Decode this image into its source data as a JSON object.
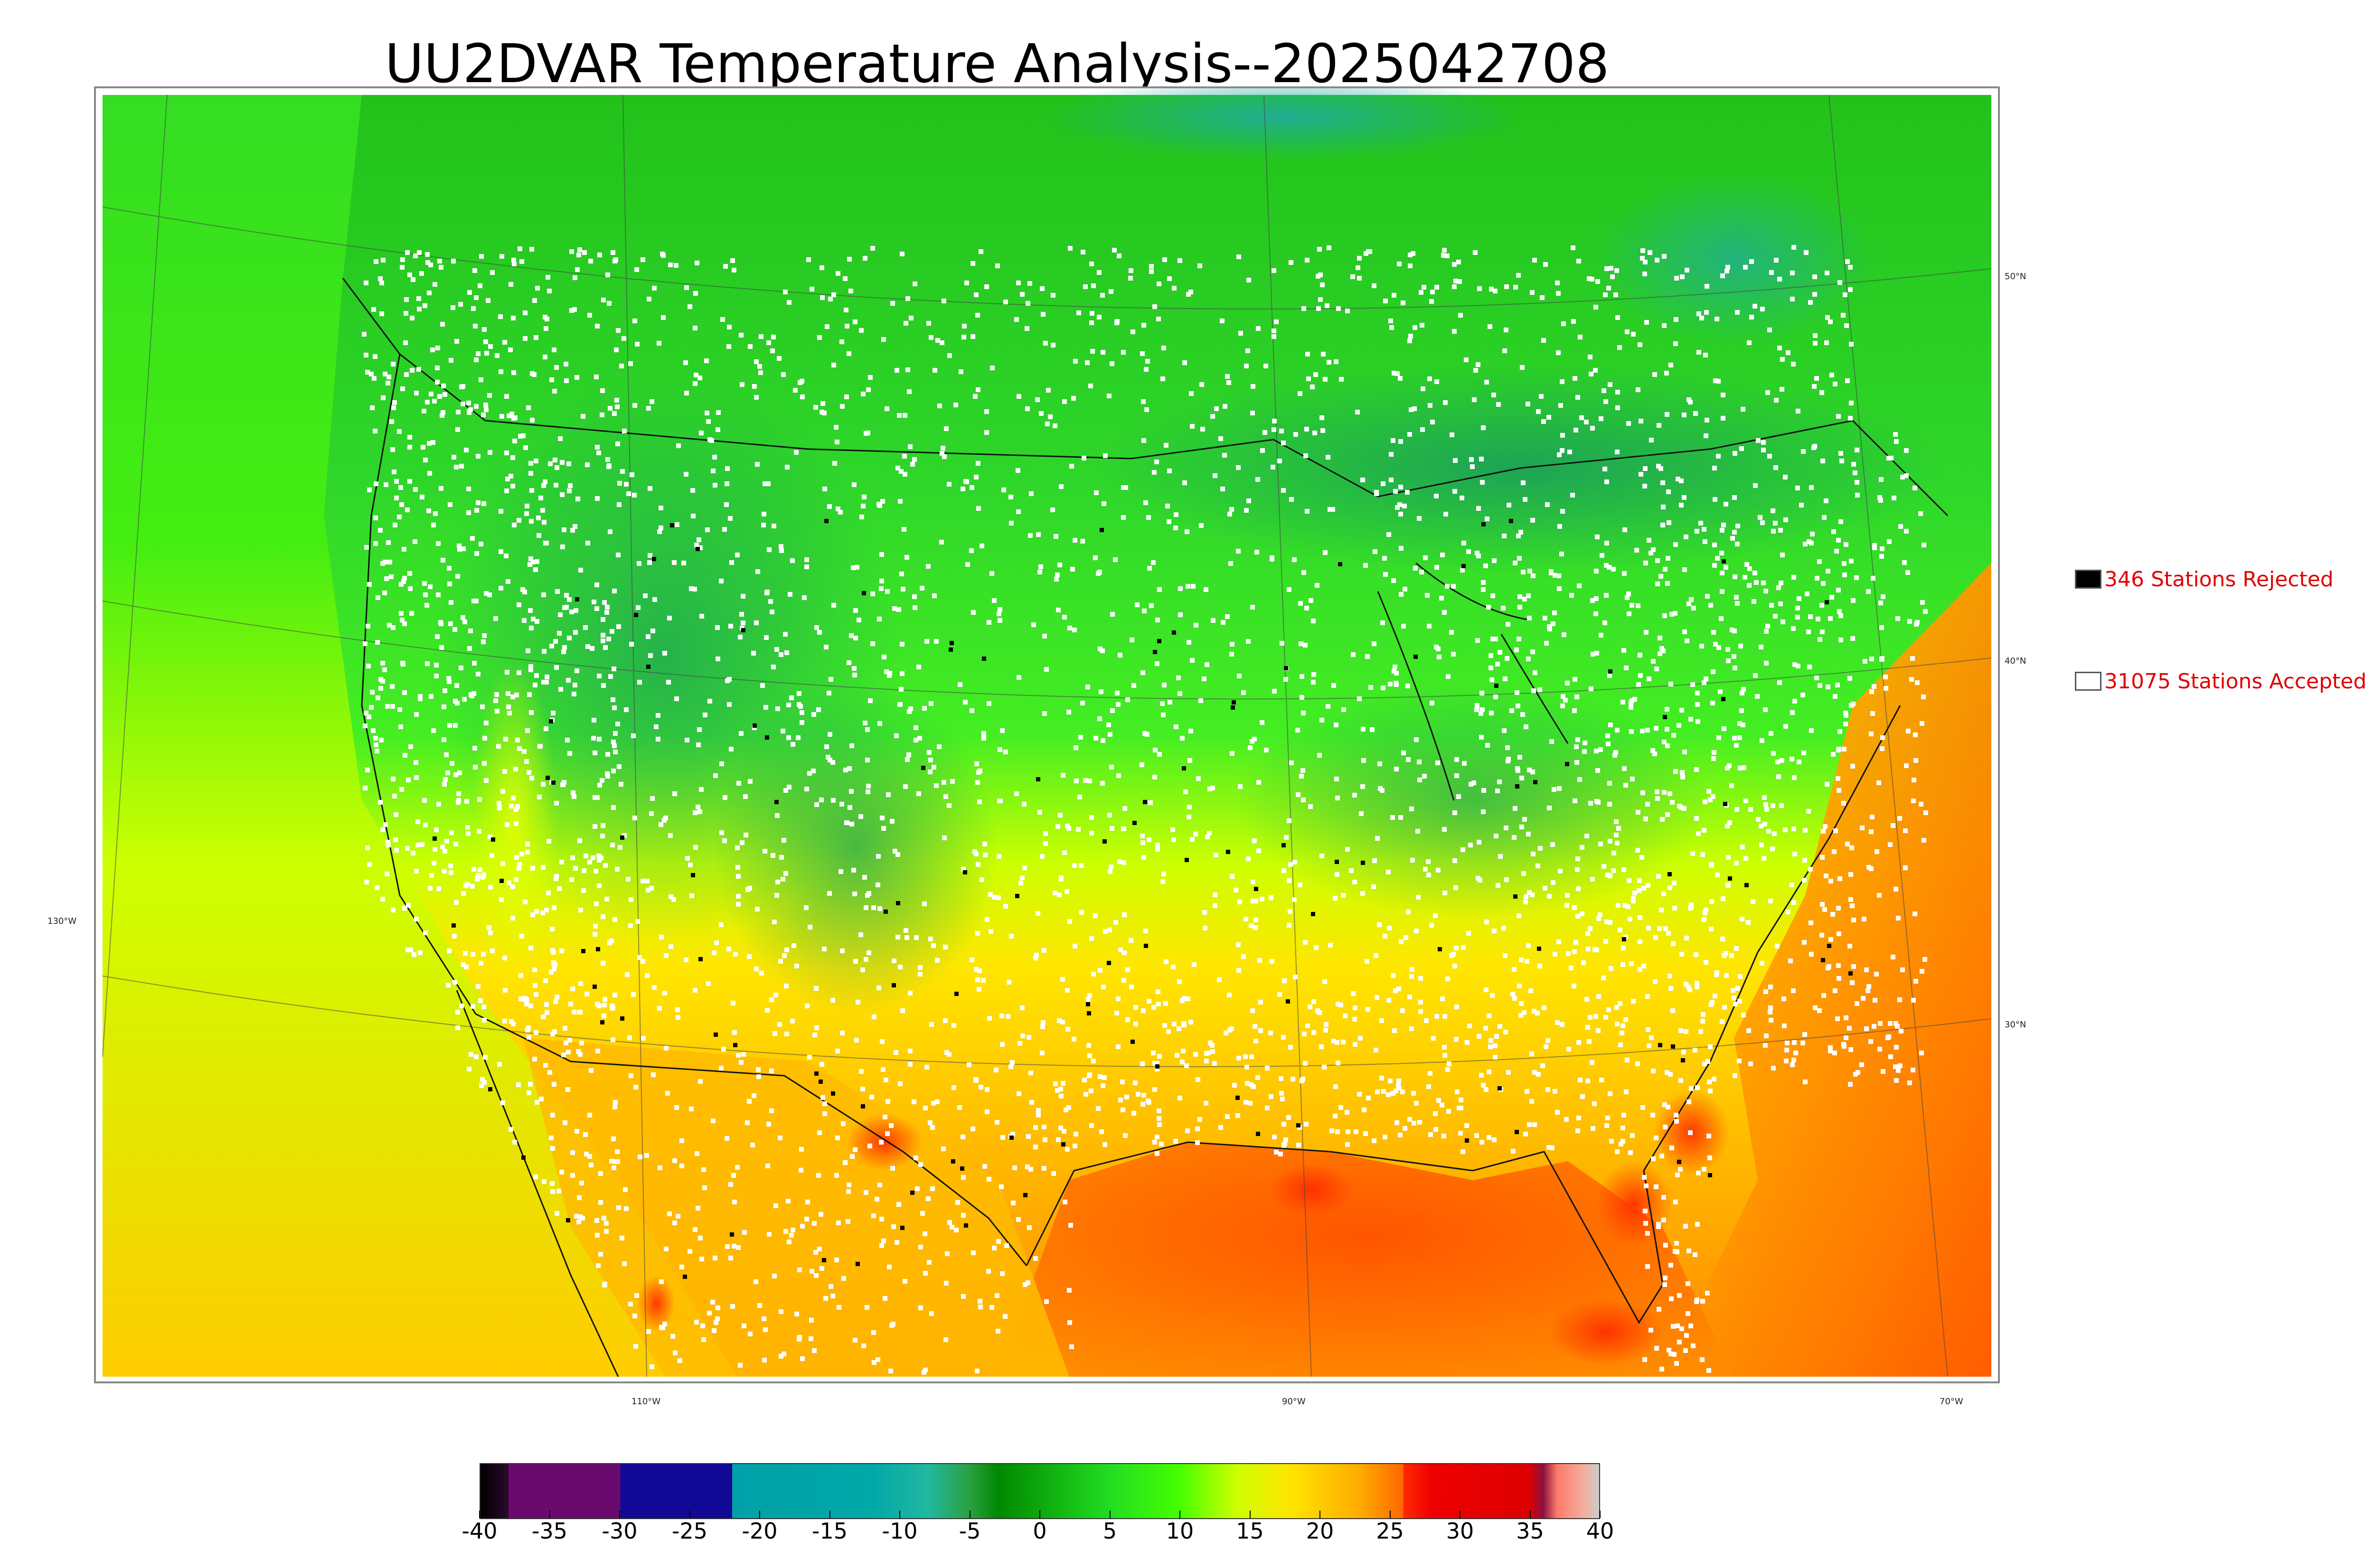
{
  "title": "UU2DVAR Temperature Analysis--2025042708",
  "legend": {
    "rejected": {
      "label": "346 Stations Rejected",
      "swatch": "#000000"
    },
    "accepted": {
      "label": "31075 Stations Accepted",
      "swatch": "#ffffff"
    }
  },
  "graticule": {
    "latitudes": [
      "50°N",
      "40°N",
      "30°N"
    ],
    "longitudes": [
      "130°W",
      "110°W",
      "90°W",
      "70°W"
    ]
  },
  "colorbar": {
    "ticks": [
      "-40",
      "-35",
      "-30",
      "-25",
      "-20",
      "-15",
      "-10",
      "-5",
      "0",
      "5",
      "10",
      "15",
      "20",
      "25",
      "30",
      "35",
      "40"
    ],
    "range": [
      -40,
      40
    ],
    "stops": [
      {
        "v": -40,
        "c": "#000000"
      },
      {
        "v": -38,
        "c": "#2a0a2a"
      },
      {
        "v": -38,
        "c": "#6a0a6e"
      },
      {
        "v": -30,
        "c": "#6a0a6e"
      },
      {
        "v": -30,
        "c": "#120896"
      },
      {
        "v": -22,
        "c": "#120896"
      },
      {
        "v": -22,
        "c": "#00a0a8"
      },
      {
        "v": -12,
        "c": "#00a8a8"
      },
      {
        "v": -8,
        "c": "#22b8a0"
      },
      {
        "v": -5,
        "c": "#2aa040"
      },
      {
        "v": -3,
        "c": "#008800"
      },
      {
        "v": 5,
        "c": "#22dd22"
      },
      {
        "v": 10,
        "c": "#44ff00"
      },
      {
        "v": 14,
        "c": "#ccff00"
      },
      {
        "v": 18,
        "c": "#ffe400"
      },
      {
        "v": 23,
        "c": "#ffaa00"
      },
      {
        "v": 26,
        "c": "#ff6600"
      },
      {
        "v": 26,
        "c": "#ff2a00"
      },
      {
        "v": 28,
        "c": "#ee0000"
      },
      {
        "v": 35,
        "c": "#dd0000"
      },
      {
        "v": 36,
        "c": "#8a1040"
      },
      {
        "v": 37,
        "c": "#ff7a6a"
      },
      {
        "v": 39,
        "c": "#f0b0a0"
      },
      {
        "v": 40,
        "c": "#cccccc"
      }
    ]
  },
  "colors": {
    "north": "#33cc22",
    "south_land": "#ffd200",
    "gulf": "#ff7a00",
    "pacific": "#c8ff00",
    "atlantic": "#ffb400",
    "cold": "#1fa868",
    "hot": "#ff2a00"
  }
}
